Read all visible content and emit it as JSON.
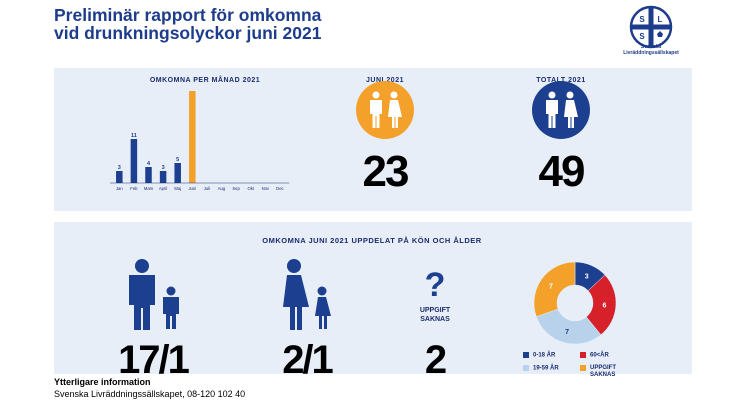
{
  "header": {
    "title_line1": "Preliminär rapport för omkomna",
    "title_line2": "vid drunkningsolyckor juni 2021"
  },
  "logo": {
    "letters": [
      "S",
      "L",
      "S"
    ],
    "name_line1": "Svenska",
    "name_line2": "Livräddningssällskapet"
  },
  "top": {
    "monthly_heading": "OMKOMNA PER MÅNAD 2021",
    "june_heading": "JUNI 2021",
    "june_value": "23",
    "total_heading": "TOTALT 2021",
    "total_value": "49"
  },
  "bottom": {
    "heading": "OMKOMNA JUNI 2021 UPPDELAT PÅ KÖN OCH ÅLDER",
    "men_value": "17/1",
    "women_value": "2/1",
    "unknown_symbol": "?",
    "unknown_label_line1": "UPPGIFT",
    "unknown_label_line2": "SAKNAS",
    "unknown_value": "2"
  },
  "legend": {
    "items": [
      {
        "label": "0-18 ÅR",
        "color": "#1c3f8f"
      },
      {
        "label": "60<ÅR",
        "color": "#d6202a"
      },
      {
        "label": "19-59 ÅR",
        "color": "#b8d2ec"
      },
      {
        "label": "UPPGIFT",
        "label2": "SAKNAS",
        "color": "#f3a12a"
      }
    ]
  },
  "footer": {
    "heading": "Ytterligare information",
    "text": "Svenska Livräddningssällskapet, 08-120 102 40"
  },
  "colors": {
    "navy": "#1c3f8f",
    "orange": "#f3a12a",
    "red": "#d6202a",
    "lightblue": "#b8d2ec",
    "panel": "#e8eef8"
  },
  "chart_data": [
    {
      "type": "bar",
      "title": "OMKOMNA PER MÅNAD 2021",
      "categories": [
        "Jan",
        "Feb",
        "Mars",
        "April",
        "Maj",
        "Juni",
        "Juli",
        "Aug",
        "Sep",
        "Okt",
        "Nov",
        "Dec"
      ],
      "values": [
        3,
        11,
        4,
        3,
        5,
        23,
        null,
        null,
        null,
        null,
        null,
        null
      ],
      "highlight": "Juni",
      "ylim": [
        0,
        23
      ]
    },
    {
      "type": "pie",
      "title": "OMKOMNA JUNI 2021 UPPDELAT PÅ KÖN OCH ÅLDER",
      "donut": true,
      "slices": [
        {
          "label": "0-18 ÅR",
          "value": 3,
          "color": "#1c3f8f"
        },
        {
          "label": "60<ÅR",
          "value": 6,
          "color": "#d6202a"
        },
        {
          "label": "19-59 ÅR",
          "value": 7,
          "color": "#b8d2ec"
        },
        {
          "label": "UPPGIFT SAKNAS",
          "value": 7,
          "color": "#f3a12a"
        }
      ]
    }
  ]
}
